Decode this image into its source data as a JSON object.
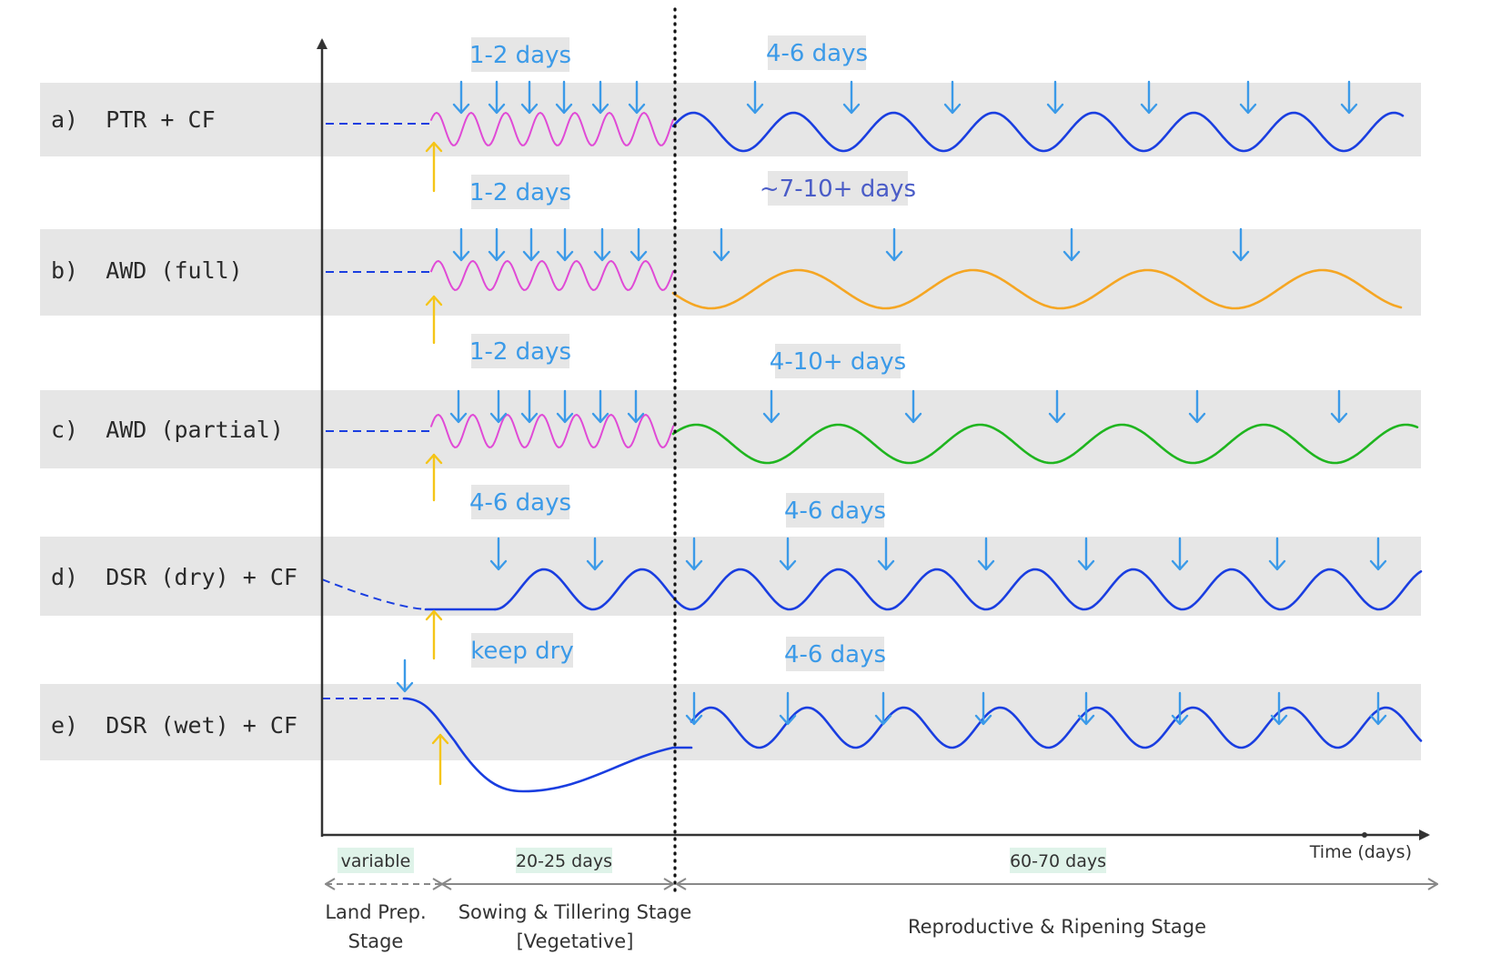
{
  "colors": {
    "band": "#e6e6e6",
    "arrow_irrigation": "#3b9ae8",
    "arrow_sowing": "#f5c518",
    "pink_wave": "#e04ad6",
    "blue_wave": "#1a3ee0",
    "orange_wave": "#f5a623",
    "green_wave": "#1fb51f",
    "axis": "#333333",
    "duration_bg": "#dff3e9",
    "text_light_blue": "#3b9ae8",
    "text_dark_blue": "#4a5cc7",
    "stage_arrow": "#888888"
  },
  "rows": [
    {
      "id": "a",
      "label": "a)  PTR + CF",
      "interval_early": "1-2 days",
      "interval_late": "4-6 days",
      "late_color": "#3b9ae8"
    },
    {
      "id": "b",
      "label": "b)  AWD (full)",
      "interval_early": "1-2 days",
      "interval_late": "~7-10+ days",
      "late_color": "#4a5cc7"
    },
    {
      "id": "c",
      "label": "c)  AWD (partial)",
      "interval_early": "1-2 days",
      "interval_late": "4-10+ days",
      "late_color": "#3b9ae8"
    },
    {
      "id": "d",
      "label": "d)  DSR (dry) + CF",
      "interval_early": "4-6 days",
      "interval_late": "4-6 days",
      "late_color": "#3b9ae8"
    },
    {
      "id": "e",
      "label": "e)  DSR (wet) + CF",
      "interval_early": "keep dry",
      "interval_late": "4-6 days",
      "late_color": "#3b9ae8"
    }
  ],
  "axis": {
    "time_label": "Time (days)"
  },
  "stages": {
    "land_prep": {
      "duration": "variable",
      "name_line1": "Land Prep.",
      "name_line2": "Stage"
    },
    "sowing": {
      "duration": "20-25 days",
      "name_line1": "Sowing & Tillering Stage",
      "name_line2": "[Vegetative]"
    },
    "reproductive": {
      "duration": "60-70 days",
      "name_line1": "Reproductive & Ripening Stage"
    }
  },
  "icons": {
    "irrigation_event": "down-arrow-icon",
    "sowing_event": "up-arrow-icon"
  }
}
